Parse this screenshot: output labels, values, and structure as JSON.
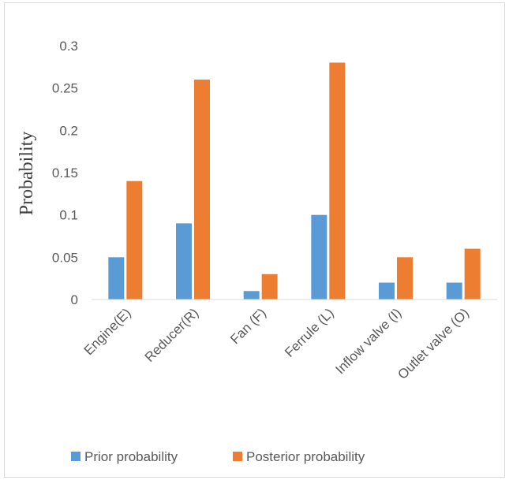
{
  "chart_data": {
    "type": "bar",
    "title": "",
    "xlabel": "",
    "ylabel": "Probability",
    "categories": [
      "Engine(E)",
      "Reducer(R)",
      "Fan (F)",
      "Ferrule (L)",
      "Inflow valve (I)",
      "Outlet valve (O)"
    ],
    "series": [
      {
        "name": "Prior probability",
        "values": [
          0.05,
          0.09,
          0.01,
          0.1,
          0.02,
          0.02
        ],
        "color": "#5b9bd5"
      },
      {
        "name": "Posterior probability",
        "values": [
          0.14,
          0.26,
          0.03,
          0.28,
          0.05,
          0.06
        ],
        "color": "#ed7d31"
      }
    ],
    "ylim": [
      0,
      0.3
    ],
    "yticks": [
      "0",
      "0.05",
      "0.1",
      "0.15",
      "0.2",
      "0.25",
      "0.3"
    ],
    "grid": false,
    "legend_position": "bottom"
  }
}
